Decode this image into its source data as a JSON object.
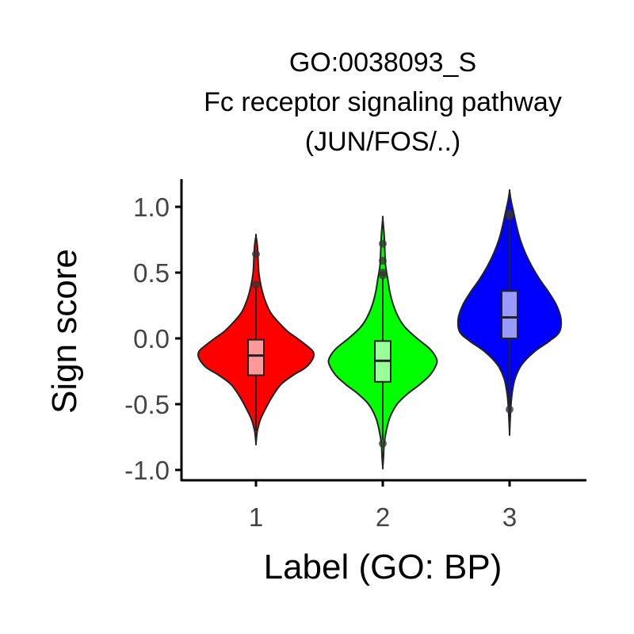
{
  "chart_data": {
    "type": "violin",
    "title": [
      "GO:0038093_S",
      "Fc receptor signaling pathway",
      "(JUN/FOS/..)"
    ],
    "xlabel": "Label (GO: BP)",
    "ylabel": "Sign score",
    "categories": [
      "1",
      "2",
      "3"
    ],
    "ylim": [
      -1.06,
      1.2
    ],
    "yticks": [
      -1.0,
      -0.5,
      0.0,
      0.5,
      1.0
    ],
    "ytick_labels": [
      "-1.0",
      "-0.5",
      "0.0",
      "0.5",
      "1.0"
    ],
    "grid": false,
    "legend": "none",
    "series": [
      {
        "category": "1",
        "fill": "#ff0000",
        "box_fill": "#ff9999",
        "violin_range": [
          -0.8,
          0.78
        ],
        "density": [
          [
            -0.8,
            0.0
          ],
          [
            -0.74,
            0.01
          ],
          [
            -0.7,
            0.02
          ],
          [
            -0.62,
            0.06
          ],
          [
            -0.55,
            0.12
          ],
          [
            -0.45,
            0.22
          ],
          [
            -0.35,
            0.35
          ],
          [
            -0.28,
            0.52
          ],
          [
            -0.22,
            0.7
          ],
          [
            -0.15,
            0.8
          ],
          [
            -0.1,
            0.8
          ],
          [
            -0.05,
            0.7
          ],
          [
            0.0,
            0.58
          ],
          [
            0.05,
            0.45
          ],
          [
            0.12,
            0.32
          ],
          [
            0.2,
            0.2
          ],
          [
            0.3,
            0.12
          ],
          [
            0.4,
            0.07
          ],
          [
            0.5,
            0.04
          ],
          [
            0.6,
            0.03
          ],
          [
            0.7,
            0.02
          ],
          [
            0.78,
            0.0
          ]
        ],
        "box": {
          "q1": -0.28,
          "median": -0.13,
          "q3": -0.01,
          "whisker_low": -0.7,
          "whisker_high": 0.4
        },
        "outliers": [
          0.64,
          0.41
        ]
      },
      {
        "category": "2",
        "fill": "#00ff00",
        "box_fill": "#99ff99",
        "violin_range": [
          -0.98,
          0.91
        ],
        "density": [
          [
            -0.98,
            0.0
          ],
          [
            -0.9,
            0.01
          ],
          [
            -0.8,
            0.02
          ],
          [
            -0.7,
            0.05
          ],
          [
            -0.6,
            0.1
          ],
          [
            -0.5,
            0.2
          ],
          [
            -0.42,
            0.35
          ],
          [
            -0.35,
            0.52
          ],
          [
            -0.28,
            0.66
          ],
          [
            -0.2,
            0.75
          ],
          [
            -0.15,
            0.75
          ],
          [
            -0.08,
            0.66
          ],
          [
            0.0,
            0.48
          ],
          [
            0.08,
            0.32
          ],
          [
            0.15,
            0.23
          ],
          [
            0.25,
            0.15
          ],
          [
            0.35,
            0.1
          ],
          [
            0.45,
            0.07
          ],
          [
            0.55,
            0.04
          ],
          [
            0.65,
            0.03
          ],
          [
            0.78,
            0.02
          ],
          [
            0.91,
            0.0
          ]
        ],
        "box": {
          "q1": -0.33,
          "median": -0.17,
          "q3": -0.02,
          "whisker_low": -0.77,
          "whisker_high": 0.46
        },
        "outliers": [
          -0.8,
          0.72,
          0.59,
          0.5,
          0.48
        ]
      },
      {
        "category": "3",
        "fill": "#0000ff",
        "box_fill": "#9999ff",
        "violin_range": [
          -0.72,
          1.12
        ],
        "density": [
          [
            -0.72,
            0.0
          ],
          [
            -0.6,
            0.01
          ],
          [
            -0.5,
            0.02
          ],
          [
            -0.4,
            0.04
          ],
          [
            -0.3,
            0.08
          ],
          [
            -0.2,
            0.17
          ],
          [
            -0.1,
            0.35
          ],
          [
            -0.02,
            0.56
          ],
          [
            0.05,
            0.7
          ],
          [
            0.15,
            0.72
          ],
          [
            0.25,
            0.66
          ],
          [
            0.35,
            0.55
          ],
          [
            0.45,
            0.42
          ],
          [
            0.55,
            0.31
          ],
          [
            0.65,
            0.22
          ],
          [
            0.75,
            0.15
          ],
          [
            0.85,
            0.1
          ],
          [
            0.95,
            0.06
          ],
          [
            1.05,
            0.02
          ],
          [
            1.12,
            0.0
          ]
        ],
        "box": {
          "q1": 0.0,
          "median": 0.16,
          "q3": 0.36,
          "whisker_low": -0.52,
          "whisker_high": 0.91
        },
        "outliers": [
          -0.54,
          0.95,
          0.93
        ]
      }
    ]
  }
}
